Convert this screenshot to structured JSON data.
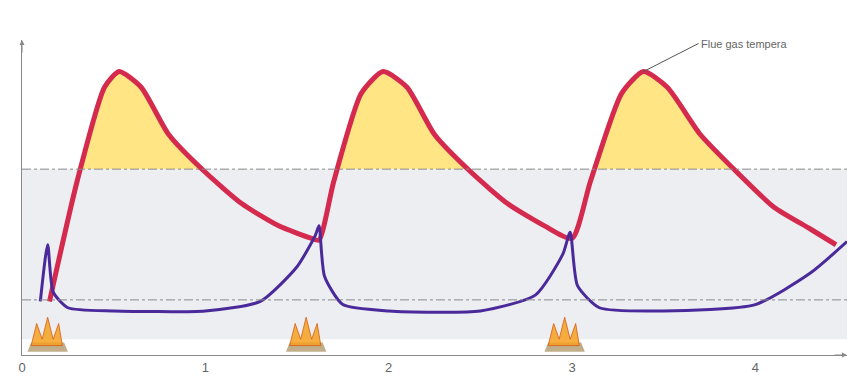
{
  "chart_data": {
    "type": "line",
    "series": [
      {
        "name": "Flue gas tempera",
        "color": "#d42a4e",
        "x": [
          0.15,
          0.3,
          0.45,
          0.53,
          0.65,
          0.8,
          1.0,
          1.2,
          1.4,
          1.58,
          1.62,
          1.7,
          1.85,
          1.97,
          2.1,
          2.25,
          2.45,
          2.65,
          2.85,
          3.0,
          3.1,
          3.27,
          3.39,
          3.52,
          3.7,
          3.9,
          4.1,
          4.3,
          4.44
        ],
        "values": [
          17,
          55,
          85,
          90,
          85,
          70,
          58,
          48,
          41,
          37,
          36.5,
          55,
          83,
          90,
          85,
          70,
          58,
          48,
          41,
          37,
          55,
          83,
          90,
          85,
          70,
          58,
          47,
          40,
          35
        ]
      },
      {
        "color": "#4a2a9a",
        "x": [
          0.1,
          0.14,
          0.17,
          0.25,
          0.5,
          1.0,
          1.3,
          1.5,
          1.6,
          1.62,
          1.65,
          1.75,
          2.0,
          2.5,
          2.8,
          2.95,
          2.99,
          3.03,
          3.15,
          3.5,
          4.0,
          4.3,
          4.5
        ],
        "values": [
          17,
          35,
          20,
          15,
          14,
          14,
          17,
          28,
          38,
          41,
          25,
          16,
          14,
          14,
          19,
          32,
          39,
          22,
          15,
          14,
          16,
          26,
          36
        ]
      }
    ],
    "xlim": [
      0,
      4.5
    ],
    "xticks": [
      0,
      1,
      2,
      3,
      4
    ],
    "ylim": [
      0,
      100
    ],
    "tick_labels": "x",
    "grid": false,
    "annotations": [
      {
        "text": "Flue gas tempera",
        "x": 3.39,
        "y": 90
      }
    ],
    "reference_lines": [
      17.5,
      59
    ],
    "band": [
      5,
      59
    ],
    "shaded_above": 59,
    "burner_events": [
      0.13,
      1.54,
      2.95
    ]
  }
}
